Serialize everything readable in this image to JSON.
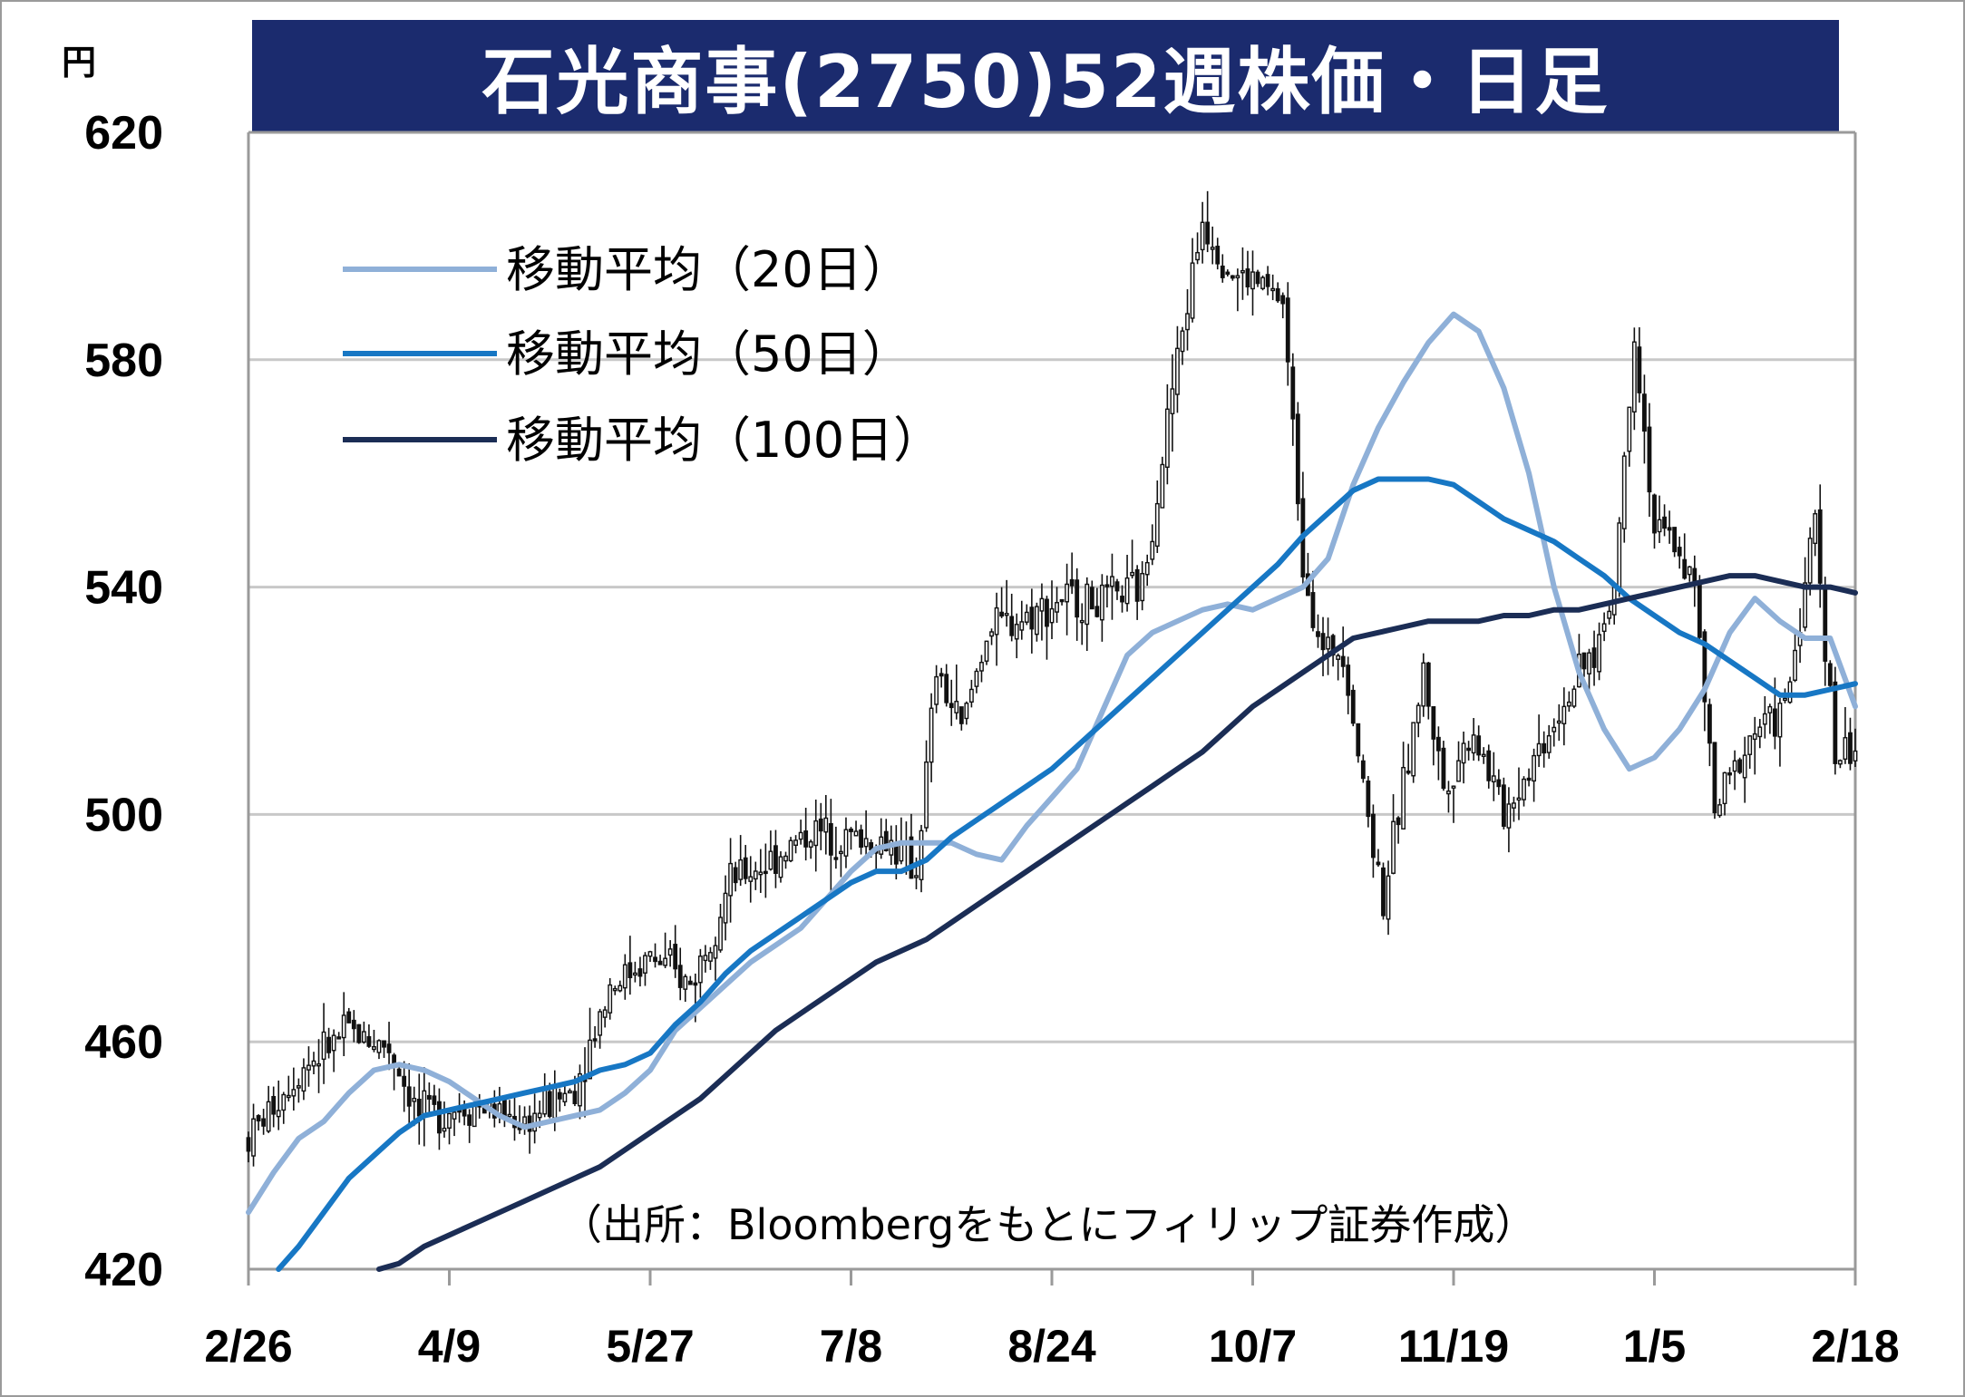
{
  "chart_data": {
    "type": "candlestick",
    "title": "石光商事(2750)52週株価・日足",
    "y_unit": "円",
    "ylim": [
      420,
      620
    ],
    "y_ticks": [
      "620",
      "580",
      "540",
      "500",
      "460",
      "420"
    ],
    "x_ticks": [
      "2/26",
      "4/9",
      "5/27",
      "7/8",
      "8/24",
      "10/7",
      "11/19",
      "1/5",
      "2/18"
    ],
    "source_note": "（出所：Bloombergをもとにフィリップ証券作成）",
    "grid": true,
    "legend_position": "top-left",
    "candles_trend": [
      {
        "x": 0,
        "price": 443
      },
      {
        "x": 10,
        "price": 455
      },
      {
        "x": 20,
        "price": 462
      },
      {
        "x": 28,
        "price": 459
      },
      {
        "x": 34,
        "price": 447
      },
      {
        "x": 45,
        "price": 449
      },
      {
        "x": 55,
        "price": 446
      },
      {
        "x": 65,
        "price": 452
      },
      {
        "x": 72,
        "price": 470
      },
      {
        "x": 80,
        "price": 475
      },
      {
        "x": 88,
        "price": 470
      },
      {
        "x": 96,
        "price": 488
      },
      {
        "x": 104,
        "price": 492
      },
      {
        "x": 112,
        "price": 497
      },
      {
        "x": 120,
        "price": 496
      },
      {
        "x": 128,
        "price": 495
      },
      {
        "x": 133,
        "price": 490
      },
      {
        "x": 137,
        "price": 525
      },
      {
        "x": 142,
        "price": 515
      },
      {
        "x": 147,
        "price": 532
      },
      {
        "x": 155,
        "price": 535
      },
      {
        "x": 162,
        "price": 538
      },
      {
        "x": 170,
        "price": 537
      },
      {
        "x": 178,
        "price": 540
      },
      {
        "x": 184,
        "price": 575
      },
      {
        "x": 190,
        "price": 605
      },
      {
        "x": 196,
        "price": 595
      },
      {
        "x": 202,
        "price": 593
      },
      {
        "x": 206,
        "price": 590
      },
      {
        "x": 210,
        "price": 545
      },
      {
        "x": 214,
        "price": 528
      },
      {
        "x": 218,
        "price": 530
      },
      {
        "x": 222,
        "price": 505
      },
      {
        "x": 226,
        "price": 485
      },
      {
        "x": 230,
        "price": 505
      },
      {
        "x": 234,
        "price": 525
      },
      {
        "x": 238,
        "price": 505
      },
      {
        "x": 244,
        "price": 515
      },
      {
        "x": 250,
        "price": 500
      },
      {
        "x": 256,
        "price": 510
      },
      {
        "x": 262,
        "price": 520
      },
      {
        "x": 268,
        "price": 528
      },
      {
        "x": 272,
        "price": 540
      },
      {
        "x": 276,
        "price": 585
      },
      {
        "x": 280,
        "price": 550
      },
      {
        "x": 284,
        "price": 548
      },
      {
        "x": 288,
        "price": 540
      },
      {
        "x": 292,
        "price": 500
      },
      {
        "x": 296,
        "price": 508
      },
      {
        "x": 300,
        "price": 515
      },
      {
        "x": 306,
        "price": 518
      },
      {
        "x": 312,
        "price": 552
      },
      {
        "x": 316,
        "price": 510
      },
      {
        "x": 320,
        "price": 512
      }
    ],
    "series": [
      {
        "name": "移動平均（20日）",
        "color": "#8fb0d8",
        "values": [
          {
            "x": 0,
            "y": 430
          },
          {
            "x": 5,
            "y": 437
          },
          {
            "x": 10,
            "y": 443
          },
          {
            "x": 15,
            "y": 446
          },
          {
            "x": 20,
            "y": 451
          },
          {
            "x": 25,
            "y": 455
          },
          {
            "x": 30,
            "y": 456
          },
          {
            "x": 35,
            "y": 455
          },
          {
            "x": 40,
            "y": 453
          },
          {
            "x": 45,
            "y": 450
          },
          {
            "x": 50,
            "y": 447
          },
          {
            "x": 55,
            "y": 445
          },
          {
            "x": 60,
            "y": 446
          },
          {
            "x": 65,
            "y": 447
          },
          {
            "x": 70,
            "y": 448
          },
          {
            "x": 75,
            "y": 451
          },
          {
            "x": 80,
            "y": 455
          },
          {
            "x": 85,
            "y": 462
          },
          {
            "x": 90,
            "y": 466
          },
          {
            "x": 95,
            "y": 470
          },
          {
            "x": 100,
            "y": 474
          },
          {
            "x": 105,
            "y": 477
          },
          {
            "x": 110,
            "y": 480
          },
          {
            "x": 115,
            "y": 485
          },
          {
            "x": 120,
            "y": 490
          },
          {
            "x": 125,
            "y": 494
          },
          {
            "x": 130,
            "y": 495
          },
          {
            "x": 135,
            "y": 495
          },
          {
            "x": 140,
            "y": 495
          },
          {
            "x": 145,
            "y": 493
          },
          {
            "x": 150,
            "y": 492
          },
          {
            "x": 155,
            "y": 498
          },
          {
            "x": 160,
            "y": 503
          },
          {
            "x": 165,
            "y": 508
          },
          {
            "x": 170,
            "y": 518
          },
          {
            "x": 175,
            "y": 528
          },
          {
            "x": 180,
            "y": 532
          },
          {
            "x": 185,
            "y": 534
          },
          {
            "x": 190,
            "y": 536
          },
          {
            "x": 195,
            "y": 537
          },
          {
            "x": 200,
            "y": 536
          },
          {
            "x": 205,
            "y": 538
          },
          {
            "x": 210,
            "y": 540
          },
          {
            "x": 215,
            "y": 545
          },
          {
            "x": 220,
            "y": 558
          },
          {
            "x": 225,
            "y": 568
          },
          {
            "x": 230,
            "y": 576
          },
          {
            "x": 235,
            "y": 583
          },
          {
            "x": 240,
            "y": 588
          },
          {
            "x": 245,
            "y": 585
          },
          {
            "x": 250,
            "y": 575
          },
          {
            "x": 255,
            "y": 560
          },
          {
            "x": 260,
            "y": 540
          },
          {
            "x": 265,
            "y": 525
          },
          {
            "x": 270,
            "y": 515
          },
          {
            "x": 275,
            "y": 508
          },
          {
            "x": 280,
            "y": 510
          },
          {
            "x": 285,
            "y": 515
          },
          {
            "x": 290,
            "y": 522
          },
          {
            "x": 295,
            "y": 532
          },
          {
            "x": 300,
            "y": 538
          },
          {
            "x": 305,
            "y": 534
          },
          {
            "x": 310,
            "y": 531
          },
          {
            "x": 315,
            "y": 531
          },
          {
            "x": 320,
            "y": 519
          }
        ]
      },
      {
        "name": "移動平均（50日）",
        "color": "#1777c4",
        "values": [
          {
            "x": 6,
            "y": 420
          },
          {
            "x": 10,
            "y": 424
          },
          {
            "x": 15,
            "y": 430
          },
          {
            "x": 20,
            "y": 436
          },
          {
            "x": 25,
            "y": 440
          },
          {
            "x": 30,
            "y": 444
          },
          {
            "x": 35,
            "y": 447
          },
          {
            "x": 40,
            "y": 448
          },
          {
            "x": 45,
            "y": 449
          },
          {
            "x": 50,
            "y": 450
          },
          {
            "x": 55,
            "y": 451
          },
          {
            "x": 60,
            "y": 452
          },
          {
            "x": 65,
            "y": 453
          },
          {
            "x": 70,
            "y": 455
          },
          {
            "x": 75,
            "y": 456
          },
          {
            "x": 80,
            "y": 458
          },
          {
            "x": 85,
            "y": 463
          },
          {
            "x": 90,
            "y": 467
          },
          {
            "x": 95,
            "y": 472
          },
          {
            "x": 100,
            "y": 476
          },
          {
            "x": 105,
            "y": 479
          },
          {
            "x": 110,
            "y": 482
          },
          {
            "x": 115,
            "y": 485
          },
          {
            "x": 120,
            "y": 488
          },
          {
            "x": 125,
            "y": 490
          },
          {
            "x": 130,
            "y": 490
          },
          {
            "x": 135,
            "y": 492
          },
          {
            "x": 140,
            "y": 496
          },
          {
            "x": 145,
            "y": 499
          },
          {
            "x": 150,
            "y": 502
          },
          {
            "x": 155,
            "y": 505
          },
          {
            "x": 160,
            "y": 508
          },
          {
            "x": 165,
            "y": 512
          },
          {
            "x": 170,
            "y": 516
          },
          {
            "x": 175,
            "y": 520
          },
          {
            "x": 180,
            "y": 524
          },
          {
            "x": 185,
            "y": 528
          },
          {
            "x": 190,
            "y": 532
          },
          {
            "x": 195,
            "y": 536
          },
          {
            "x": 200,
            "y": 540
          },
          {
            "x": 205,
            "y": 544
          },
          {
            "x": 210,
            "y": 549
          },
          {
            "x": 215,
            "y": 553
          },
          {
            "x": 220,
            "y": 557
          },
          {
            "x": 225,
            "y": 559
          },
          {
            "x": 230,
            "y": 559
          },
          {
            "x": 235,
            "y": 559
          },
          {
            "x": 240,
            "y": 558
          },
          {
            "x": 245,
            "y": 555
          },
          {
            "x": 250,
            "y": 552
          },
          {
            "x": 255,
            "y": 550
          },
          {
            "x": 260,
            "y": 548
          },
          {
            "x": 265,
            "y": 545
          },
          {
            "x": 270,
            "y": 542
          },
          {
            "x": 275,
            "y": 538
          },
          {
            "x": 280,
            "y": 535
          },
          {
            "x": 285,
            "y": 532
          },
          {
            "x": 290,
            "y": 530
          },
          {
            "x": 295,
            "y": 527
          },
          {
            "x": 300,
            "y": 524
          },
          {
            "x": 305,
            "y": 521
          },
          {
            "x": 310,
            "y": 521
          },
          {
            "x": 315,
            "y": 522
          },
          {
            "x": 320,
            "y": 523
          }
        ]
      },
      {
        "name": "移動平均（100日）",
        "color": "#1b2d55",
        "values": [
          {
            "x": 26,
            "y": 420
          },
          {
            "x": 30,
            "y": 421
          },
          {
            "x": 35,
            "y": 424
          },
          {
            "x": 40,
            "y": 426
          },
          {
            "x": 45,
            "y": 428
          },
          {
            "x": 50,
            "y": 430
          },
          {
            "x": 55,
            "y": 432
          },
          {
            "x": 60,
            "y": 434
          },
          {
            "x": 65,
            "y": 436
          },
          {
            "x": 70,
            "y": 438
          },
          {
            "x": 75,
            "y": 441
          },
          {
            "x": 80,
            "y": 444
          },
          {
            "x": 85,
            "y": 447
          },
          {
            "x": 90,
            "y": 450
          },
          {
            "x": 95,
            "y": 454
          },
          {
            "x": 100,
            "y": 458
          },
          {
            "x": 105,
            "y": 462
          },
          {
            "x": 110,
            "y": 465
          },
          {
            "x": 115,
            "y": 468
          },
          {
            "x": 120,
            "y": 471
          },
          {
            "x": 125,
            "y": 474
          },
          {
            "x": 130,
            "y": 476
          },
          {
            "x": 135,
            "y": 478
          },
          {
            "x": 140,
            "y": 481
          },
          {
            "x": 145,
            "y": 484
          },
          {
            "x": 150,
            "y": 487
          },
          {
            "x": 155,
            "y": 490
          },
          {
            "x": 160,
            "y": 493
          },
          {
            "x": 165,
            "y": 496
          },
          {
            "x": 170,
            "y": 499
          },
          {
            "x": 175,
            "y": 502
          },
          {
            "x": 180,
            "y": 505
          },
          {
            "x": 185,
            "y": 508
          },
          {
            "x": 190,
            "y": 511
          },
          {
            "x": 195,
            "y": 515
          },
          {
            "x": 200,
            "y": 519
          },
          {
            "x": 205,
            "y": 522
          },
          {
            "x": 210,
            "y": 525
          },
          {
            "x": 215,
            "y": 528
          },
          {
            "x": 220,
            "y": 531
          },
          {
            "x": 225,
            "y": 532
          },
          {
            "x": 230,
            "y": 533
          },
          {
            "x": 235,
            "y": 534
          },
          {
            "x": 240,
            "y": 534
          },
          {
            "x": 245,
            "y": 534
          },
          {
            "x": 250,
            "y": 535
          },
          {
            "x": 255,
            "y": 535
          },
          {
            "x": 260,
            "y": 536
          },
          {
            "x": 265,
            "y": 536
          },
          {
            "x": 270,
            "y": 537
          },
          {
            "x": 275,
            "y": 538
          },
          {
            "x": 280,
            "y": 539
          },
          {
            "x": 285,
            "y": 540
          },
          {
            "x": 290,
            "y": 541
          },
          {
            "x": 295,
            "y": 542
          },
          {
            "x": 300,
            "y": 542
          },
          {
            "x": 305,
            "y": 541
          },
          {
            "x": 310,
            "y": 540
          },
          {
            "x": 315,
            "y": 540
          },
          {
            "x": 320,
            "y": 539
          }
        ]
      }
    ]
  }
}
